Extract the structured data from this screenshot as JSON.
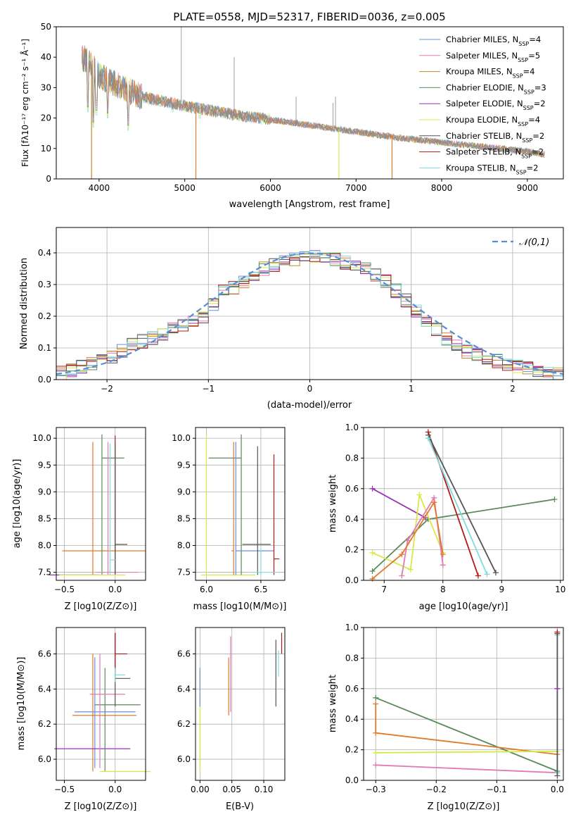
{
  "figure": {
    "title": "PLATE=0558, MJD=52317, FIBERID=0036, z=0.005"
  },
  "colors": {
    "Chabrier MILES": "#6a8fd8",
    "Salpeter MILES": "#e07bb5",
    "Kroupa MILES": "#c0892b",
    "Chabrier ELODIE": "#5a8a5a",
    "Salpeter ELODIE": "#9b30b5",
    "Kroupa ELODIE": "#d8e84a",
    "Chabrier STELIB": "#555555",
    "Salpeter STELIB": "#b51818",
    "Kroupa STELIB": "#7fdcdc",
    "orange": "#e07b2a",
    "spectrum_gray": "#888888",
    "normal_curve": "#5b8bd6"
  },
  "chart_data": [
    {
      "id": "spectrum",
      "type": "line",
      "xlabel": "wavelength [Angstrom, rest frame]",
      "ylabel": "Flux [fλ10⁻¹⁷ erg cm⁻² s⁻¹ Å⁻¹]",
      "xlim": [
        3500,
        9420
      ],
      "ylim": [
        0,
        50
      ],
      "xticks": [
        4000,
        5000,
        6000,
        7000,
        8000,
        9000
      ],
      "yticks": [
        0,
        10,
        20,
        30,
        40,
        50
      ],
      "grid": false,
      "legend_position": "top-right",
      "legend": [
        {
          "label": "Chabrier MILES, N",
          "sub": "SSP",
          "suffix": "=4",
          "color_key": "Chabrier MILES"
        },
        {
          "label": "Salpeter MILES, N",
          "sub": "SSP",
          "suffix": "=5",
          "color_key": "Salpeter MILES"
        },
        {
          "label": "Kroupa MILES, N",
          "sub": "SSP",
          "suffix": "=4",
          "color_key": "Kroupa MILES"
        },
        {
          "label": "Chabrier ELODIE, N",
          "sub": "SSP",
          "suffix": "=3",
          "color_key": "Chabrier ELODIE"
        },
        {
          "label": "Salpeter ELODIE, N",
          "sub": "SSP",
          "suffix": "=2",
          "color_key": "Salpeter ELODIE"
        },
        {
          "label": "Kroupa ELODIE, N",
          "sub": "SSP",
          "suffix": "=4",
          "color_key": "Kroupa ELODIE"
        },
        {
          "label": "Chabrier STELIB, N",
          "sub": "SSP",
          "suffix": "=2",
          "color_key": "Chabrier STELIB"
        },
        {
          "label": "Salpeter STELIB, N",
          "sub": "SSP",
          "suffix": "=2",
          "color_key": "Salpeter STELIB"
        },
        {
          "label": "Kroupa STELIB, N",
          "sub": "SSP",
          "suffix": "=2",
          "color_key": "Kroupa STELIB"
        }
      ],
      "continuum": [
        [
          3800,
          40
        ],
        [
          3900,
          38
        ],
        [
          4000,
          34
        ],
        [
          4200,
          31
        ],
        [
          4500,
          27
        ],
        [
          5000,
          24
        ],
        [
          5500,
          21.5
        ],
        [
          6000,
          19.5
        ],
        [
          6500,
          17.5
        ],
        [
          7000,
          15.5
        ],
        [
          7500,
          13.5
        ],
        [
          8000,
          12
        ],
        [
          8500,
          10.5
        ],
        [
          9000,
          9
        ],
        [
          9200,
          8
        ]
      ],
      "absorption_lines": [
        [
          3870,
          22
        ],
        [
          3934,
          17
        ],
        [
          3969,
          21
        ],
        [
          4102,
          20
        ],
        [
          4340,
          16
        ],
        [
          4861,
          22
        ],
        [
          5175,
          20
        ],
        [
          5890,
          18
        ],
        [
          8500,
          9
        ]
      ],
      "emission_spikes": [
        [
          4960,
          50
        ],
        [
          5577,
          40
        ],
        [
          6300,
          27
        ],
        [
          6730,
          25
        ],
        [
          6760,
          27
        ]
      ],
      "dropouts": [
        [
          3912,
          "Kroupa MILES"
        ],
        [
          5130,
          "orange"
        ],
        [
          6800,
          "Kroupa ELODIE"
        ],
        [
          7420,
          "orange"
        ]
      ]
    },
    {
      "id": "residual-histogram",
      "type": "bar",
      "xlabel": "(data-model)/error",
      "ylabel": "Normed distribution",
      "xlim": [
        -2.5,
        2.5
      ],
      "ylim": [
        0,
        0.48
      ],
      "xticks": [
        -2,
        -1,
        0,
        1,
        2
      ],
      "yticks": [
        0.0,
        0.1,
        0.2,
        0.3,
        0.4
      ],
      "grid": true,
      "legend_position": "top-right",
      "legend_label": "𝒩(0,1)",
      "bin_width": 0.1,
      "bin_start": -2.5,
      "histogram_values": [
        0.02,
        0.03,
        0.04,
        0.05,
        0.06,
        0.07,
        0.09,
        0.11,
        0.12,
        0.13,
        0.14,
        0.16,
        0.17,
        0.18,
        0.2,
        0.24,
        0.28,
        0.29,
        0.31,
        0.33,
        0.35,
        0.36,
        0.37,
        0.38,
        0.39,
        0.39,
        0.38,
        0.38,
        0.37,
        0.36,
        0.35,
        0.33,
        0.31,
        0.28,
        0.25,
        0.22,
        0.19,
        0.16,
        0.13,
        0.11,
        0.09,
        0.08,
        0.07,
        0.06,
        0.05,
        0.04,
        0.04,
        0.03,
        0.02,
        0.02
      ],
      "normal_curve": {
        "mean": 0,
        "sigma": 1
      }
    },
    {
      "id": "age-vs-Z",
      "type": "scatter",
      "xlabel": "Z [log10(Z/Z⊙)]",
      "ylabel": "age  [log10(age/yr)]",
      "xlim": [
        -0.58,
        0.3
      ],
      "ylim": [
        7.35,
        10.2
      ],
      "xticks": [
        -0.5,
        0.0
      ],
      "yticks": [
        7.5,
        8.0,
        8.5,
        9.0,
        9.5,
        10.0
      ],
      "grid": true,
      "errorbars": [
        {
          "x": -0.22,
          "y": 7.9,
          "xerr": [
            0.3,
            0.52
          ],
          "yerr": [
            7.45,
            9.93
          ],
          "color_key": "orange"
        },
        {
          "x": -0.13,
          "y": 9.63,
          "xerr": [
            0.0,
            0.22
          ],
          "yerr": [
            7.45,
            10.07
          ],
          "color_key": "Chabrier ELODIE"
        },
        {
          "x": -0.07,
          "y": 7.5,
          "xerr": [
            0.12,
            0.3
          ],
          "yerr": [
            7.45,
            9.93
          ],
          "color_key": "Salpeter MILES"
        },
        {
          "x": 0.0,
          "y": 9.93,
          "xerr": [
            0.0,
            0.0
          ],
          "yerr": [
            7.45,
            10.05
          ],
          "color_key": "Salpeter STELIB"
        },
        {
          "x": 0.0,
          "y": 8.02,
          "xerr": [
            0.0,
            0.12
          ],
          "yerr": [
            7.45,
            9.9
          ],
          "color_key": "Chabrier STELIB"
        },
        {
          "x": -0.05,
          "y": 7.73,
          "xerr": [
            0.0,
            0.05
          ],
          "yerr": [
            7.45,
            9.9
          ],
          "color_key": "Kroupa STELIB"
        },
        {
          "x": -0.35,
          "y": 7.45,
          "xerr": [
            0.3,
            0.2
          ],
          "yerr": [
            7.45,
            7.45
          ],
          "color_key": "Salpeter ELODIE"
        },
        {
          "x": -0.3,
          "y": 7.45,
          "xerr": [
            0.25,
            0.4
          ],
          "yerr": [
            7.45,
            7.45
          ],
          "color_key": "Kroupa ELODIE"
        }
      ]
    },
    {
      "id": "age-vs-mass",
      "type": "scatter",
      "xlabel": "mass [log10(M/M⊙)]",
      "ylabel": "",
      "xlim": [
        5.9,
        6.72
      ],
      "ylim": [
        7.35,
        10.2
      ],
      "xticks": [
        6.0,
        6.5
      ],
      "yticks": [
        7.5,
        8.0,
        8.5,
        9.0,
        9.5,
        10.0
      ],
      "grid": true,
      "errorbars": [
        {
          "x": 6.0,
          "y": 7.45,
          "xerr": [
            0.05,
            0.45
          ],
          "yerr": [
            7.45,
            10.05
          ],
          "color_key": "Kroupa ELODIE"
        },
        {
          "x": 6.32,
          "y": 9.63,
          "xerr": [
            0.3,
            0.0
          ],
          "yerr": [
            7.45,
            10.07
          ],
          "color_key": "Chabrier ELODIE"
        },
        {
          "x": 6.25,
          "y": 7.9,
          "xerr": [
            0.02,
            0.0
          ],
          "yerr": [
            7.45,
            9.93
          ],
          "color_key": "orange"
        },
        {
          "x": 6.27,
          "y": 7.9,
          "xerr": [
            0.0,
            0.35
          ],
          "yerr": [
            7.45,
            9.93
          ],
          "color_key": "Chabrier MILES"
        },
        {
          "x": 6.47,
          "y": 8.02,
          "xerr": [
            0.14,
            0.12
          ],
          "yerr": [
            7.45,
            9.85
          ],
          "color_key": "Chabrier STELIB"
        },
        {
          "x": 6.62,
          "y": 7.75,
          "xerr": [
            0.0,
            0.05
          ],
          "yerr": [
            7.45,
            9.7
          ],
          "color_key": "Salpeter STELIB"
        },
        {
          "x": 6.5,
          "y": 7.5,
          "xerr": [
            0.1,
            0.15
          ],
          "yerr": [
            7.45,
            7.95
          ],
          "color_key": "Kroupa STELIB"
        }
      ]
    },
    {
      "id": "weight-vs-age",
      "type": "line",
      "xlabel": "age  [log10(age/yr)]",
      "ylabel": "mass weight",
      "xlim": [
        6.65,
        10.05
      ],
      "ylim": [
        0,
        1.0
      ],
      "xticks": [
        7,
        8,
        9,
        10
      ],
      "yticks": [
        0.0,
        0.2,
        0.4,
        0.6,
        0.8,
        1.0
      ],
      "grid": true,
      "series": [
        {
          "color_key": "Chabrier ELODIE",
          "x": [
            6.8,
            7.75,
            9.9
          ],
          "y": [
            0.06,
            0.4,
            0.53
          ]
        },
        {
          "color_key": "Salpeter ELODIE",
          "x": [
            6.8,
            7.7
          ],
          "y": [
            0.6,
            0.41
          ]
        },
        {
          "color_key": "Kroupa ELODIE",
          "x": [
            6.8,
            7.45,
            7.6,
            8.0
          ],
          "y": [
            0.18,
            0.07,
            0.56,
            0.18
          ]
        },
        {
          "color_key": "Salpeter MILES",
          "x": [
            7.3,
            7.4,
            7.85,
            8.0
          ],
          "y": [
            0.03,
            0.26,
            0.54,
            0.1
          ]
        },
        {
          "color_key": "orange",
          "x": [
            6.8,
            7.3,
            7.85,
            8.0
          ],
          "y": [
            0.01,
            0.17,
            0.51,
            0.17
          ]
        },
        {
          "color_key": "Salpeter STELIB",
          "x": [
            7.75,
            8.6
          ],
          "y": [
            0.97,
            0.03
          ]
        },
        {
          "color_key": "Chabrier STELIB",
          "x": [
            7.75,
            8.9
          ],
          "y": [
            0.95,
            0.05
          ]
        },
        {
          "color_key": "Kroupa STELIB",
          "x": [
            7.75,
            8.75
          ],
          "y": [
            0.93,
            0.04
          ]
        }
      ]
    },
    {
      "id": "mass-vs-Z",
      "type": "scatter",
      "xlabel": "Z [log10(Z/Z⊙)]",
      "ylabel": "mass [log10(M/M⊙)]",
      "xlim": [
        -0.58,
        0.3
      ],
      "ylim": [
        5.88,
        6.75
      ],
      "xticks": [
        -0.5,
        0.0
      ],
      "yticks": [
        6.0,
        6.2,
        6.4,
        6.6
      ],
      "grid": true,
      "errorbars": [
        {
          "x": -0.22,
          "y": 6.25,
          "xerr": [
            0.2,
            0.43
          ],
          "yerr": [
            5.93,
            6.6
          ],
          "color_key": "orange"
        },
        {
          "x": -0.2,
          "y": 6.27,
          "xerr": [
            0.2,
            0.4
          ],
          "yerr": [
            5.95,
            6.58
          ],
          "color_key": "Chabrier MILES"
        },
        {
          "x": -0.15,
          "y": 6.06,
          "xerr": [
            0.45,
            0.3
          ],
          "yerr": [
            6.06,
            6.06
          ],
          "color_key": "Salpeter ELODIE"
        },
        {
          "x": -0.1,
          "y": 6.31,
          "xerr": [
            0.1,
            0.35
          ],
          "yerr": [
            5.93,
            6.52
          ],
          "color_key": "Chabrier ELODIE"
        },
        {
          "x": -0.15,
          "y": 6.37,
          "xerr": [
            0.1,
            0.25
          ],
          "yerr": [
            5.95,
            6.6
          ],
          "color_key": "Salpeter MILES"
        },
        {
          "x": 0.0,
          "y": 6.46,
          "xerr": [
            0.0,
            0.15
          ],
          "yerr": [
            6.3,
            6.72
          ],
          "color_key": "Chabrier STELIB"
        },
        {
          "x": 0.0,
          "y": 6.6,
          "xerr": [
            0.0,
            0.12
          ],
          "yerr": [
            6.5,
            6.72
          ],
          "color_key": "Salpeter STELIB"
        },
        {
          "x": 0.0,
          "y": 6.48,
          "xerr": [
            0.0,
            0.1
          ],
          "yerr": [
            6.44,
            6.52
          ],
          "color_key": "Kroupa STELIB"
        },
        {
          "x": -0.15,
          "y": 5.93,
          "xerr": [
            0.0,
            0.5
          ],
          "yerr": [
            5.93,
            5.93
          ],
          "color_key": "Kroupa ELODIE"
        }
      ]
    },
    {
      "id": "mass-vs-EBV",
      "type": "scatter",
      "xlabel": "E(B-V)",
      "ylabel": "",
      "xlim": [
        -0.007,
        0.133
      ],
      "ylim": [
        5.88,
        6.75
      ],
      "xticks": [
        0.0,
        0.05,
        0.1
      ],
      "yticks": [
        6.0,
        6.2,
        6.4,
        6.6
      ],
      "grid": true,
      "errorbars": [
        {
          "x": 0.0,
          "y": 6.25,
          "xerr": [
            0,
            0
          ],
          "yerr": [
            5.93,
            6.5
          ],
          "color_key": "Kroupa ELODIE"
        },
        {
          "x": 0.0,
          "y": 6.4,
          "xerr": [
            0,
            0
          ],
          "yerr": [
            6.3,
            6.52
          ],
          "color_key": "Chabrier MILES"
        },
        {
          "x": 0.045,
          "y": 6.4,
          "xerr": [
            0,
            0
          ],
          "yerr": [
            6.25,
            6.58
          ],
          "color_key": "orange"
        },
        {
          "x": 0.048,
          "y": 6.45,
          "xerr": [
            0,
            0
          ],
          "yerr": [
            6.27,
            6.7
          ],
          "color_key": "Salpeter MILES"
        },
        {
          "x": 0.119,
          "y": 6.5,
          "xerr": [
            0,
            0
          ],
          "yerr": [
            6.3,
            6.68
          ],
          "color_key": "Chabrier STELIB"
        },
        {
          "x": 0.123,
          "y": 6.55,
          "xerr": [
            0,
            0
          ],
          "yerr": [
            6.47,
            6.62
          ],
          "color_key": "Kroupa STELIB"
        },
        {
          "x": 0.128,
          "y": 6.65,
          "xerr": [
            0,
            0
          ],
          "yerr": [
            6.6,
            6.72
          ],
          "color_key": "Salpeter STELIB"
        }
      ]
    },
    {
      "id": "weight-vs-Z",
      "type": "line",
      "xlabel": "Z [log10(Z/Z⊙)]",
      "ylabel": "mass weight",
      "xlim": [
        -0.32,
        0.01
      ],
      "ylim": [
        0,
        1.0
      ],
      "xticks": [
        -0.3,
        -0.2,
        -0.1,
        0.0
      ],
      "yticks": [
        0.0,
        0.2,
        0.4,
        0.6,
        0.8,
        1.0
      ],
      "grid": true,
      "series": [
        {
          "color_key": "Chabrier ELODIE",
          "x": [
            -0.3,
            0.0
          ],
          "y": [
            0.54,
            0.06
          ]
        },
        {
          "color_key": "orange",
          "x": [
            -0.3,
            -0.3,
            0.0
          ],
          "y": [
            0.5,
            0.31,
            0.17
          ]
        },
        {
          "color_key": "Salpeter MILES",
          "x": [
            -0.3,
            0.0
          ],
          "y": [
            0.1,
            0.05
          ]
        },
        {
          "color_key": "Kroupa ELODIE",
          "x": [
            -0.3,
            0.0
          ],
          "y": [
            0.18,
            0.19
          ]
        },
        {
          "color_key": "Kroupa STELIB",
          "x": [
            0.0,
            0.0
          ],
          "y": [
            0.05,
            0.95
          ]
        },
        {
          "color_key": "Chabrier STELIB",
          "x": [
            0.0,
            0.0
          ],
          "y": [
            0.03,
            0.96
          ]
        },
        {
          "color_key": "Salpeter STELIB",
          "x": [
            0.0
          ],
          "y": [
            0.97
          ]
        },
        {
          "color_key": "Salpeter ELODIE",
          "x": [
            0.0
          ],
          "y": [
            0.6
          ]
        }
      ]
    }
  ]
}
